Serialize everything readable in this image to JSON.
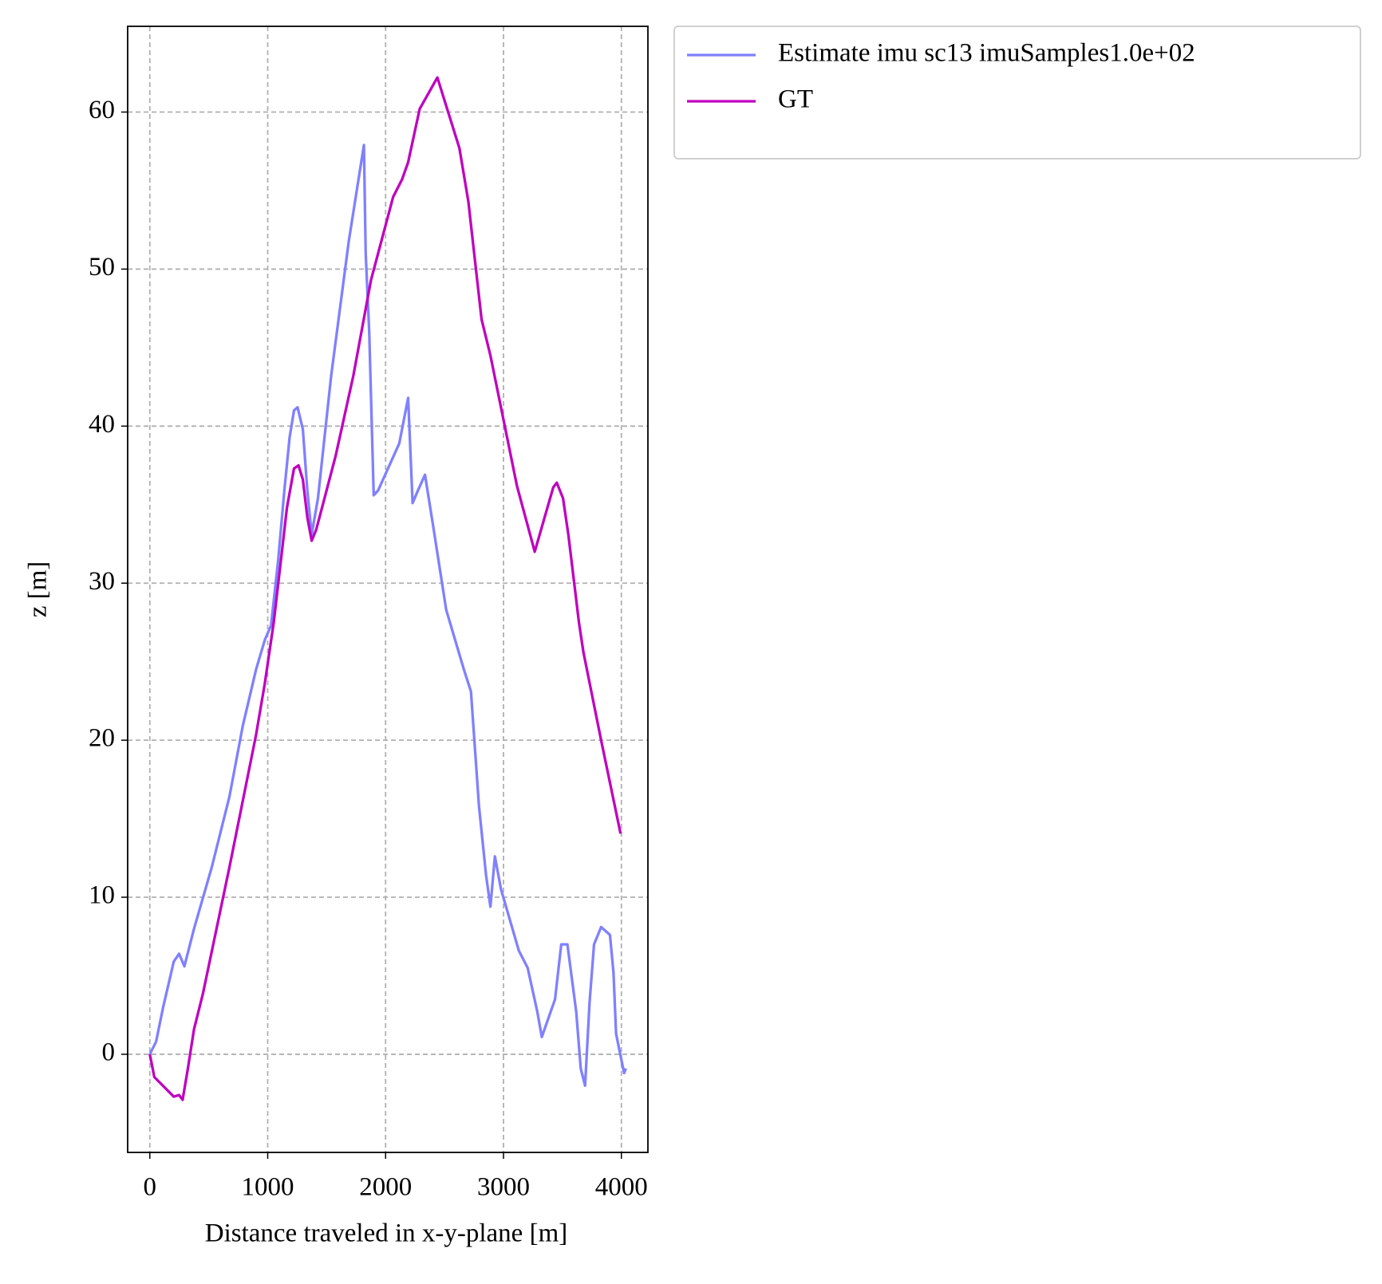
{
  "chart_data": {
    "type": "line",
    "xlabel": "Distance traveled in x-y-plane [m]",
    "ylabel": "z [m]",
    "xlim": [
      -188,
      4225
    ],
    "ylim": [
      -6.25,
      65.46
    ],
    "xticks": [
      0,
      1000,
      2000,
      3000,
      4000
    ],
    "yticks": [
      0,
      10,
      20,
      30,
      40,
      50,
      60
    ],
    "grid": true,
    "legend": "outside-upper-left",
    "series": [
      {
        "name": "Estimate imu sc13 imuSamples1.0e+02",
        "color": "#8080ff",
        "x": [
          0,
          53,
          113,
          203,
          248,
          293,
          375,
          525,
          675,
          788,
          901,
          976,
          1028,
          1088,
          1141,
          1186,
          1223,
          1253,
          1298,
          1336,
          1373,
          1426,
          1538,
          1688,
          1816,
          1831,
          1861,
          1899,
          1936,
          2116,
          2191,
          2229,
          2274,
          2334,
          2402,
          2514,
          2664,
          2724,
          2792,
          2852,
          2889,
          2927,
          2979,
          3130,
          3205,
          3287,
          3325,
          3437,
          3490,
          3542,
          3617,
          3655,
          3692,
          3730,
          3768,
          3828,
          3903,
          3933,
          3955,
          4023,
          4038
        ],
        "values": [
          0,
          0.8,
          3.0,
          5.9,
          6.4,
          5.6,
          8.0,
          11.9,
          16.4,
          20.9,
          24.5,
          26.4,
          27.3,
          31.4,
          35.9,
          39.3,
          41.0,
          41.2,
          39.8,
          35.9,
          33.1,
          35.4,
          43.2,
          51.8,
          57.9,
          51.0,
          46.0,
          35.6,
          35.9,
          38.9,
          41.8,
          35.1,
          35.9,
          36.9,
          33.7,
          28.3,
          24.5,
          23.1,
          15.8,
          11.4,
          9.4,
          12.6,
          10.5,
          6.6,
          5.5,
          2.7,
          1.1,
          3.5,
          7.0,
          7.0,
          2.7,
          -0.9,
          -2.0,
          3.3,
          7.0,
          8.1,
          7.6,
          5.2,
          1.3,
          -1.2,
          -0.9
        ]
      },
      {
        "name": "GT",
        "color": "#bf00bf",
        "x": [
          0,
          38,
          150,
          203,
          248,
          278,
          323,
          375,
          450,
          675,
          900,
          975,
          1051,
          1111,
          1163,
          1223,
          1261,
          1298,
          1336,
          1373,
          1411,
          1471,
          1576,
          1726,
          1876,
          2064,
          2139,
          2191,
          2289,
          2439,
          2626,
          2702,
          2814,
          2889,
          3114,
          3265,
          3422,
          3452,
          3505,
          3550,
          3640,
          3678,
          3828,
          3993
        ],
        "values": [
          0,
          -1.45,
          -2.3,
          -2.7,
          -2.6,
          -2.9,
          -0.9,
          1.6,
          3.85,
          11.9,
          20.3,
          23.6,
          27.5,
          31.4,
          34.8,
          37.3,
          37.5,
          36.6,
          34.2,
          32.7,
          33.4,
          35.1,
          38.1,
          43.2,
          49.3,
          54.6,
          55.7,
          56.8,
          60.2,
          62.2,
          57.7,
          54.3,
          46.8,
          44.5,
          36.2,
          32.0,
          36.1,
          36.4,
          35.4,
          33.1,
          27.5,
          25.6,
          20.0,
          14.05
        ]
      }
    ]
  }
}
